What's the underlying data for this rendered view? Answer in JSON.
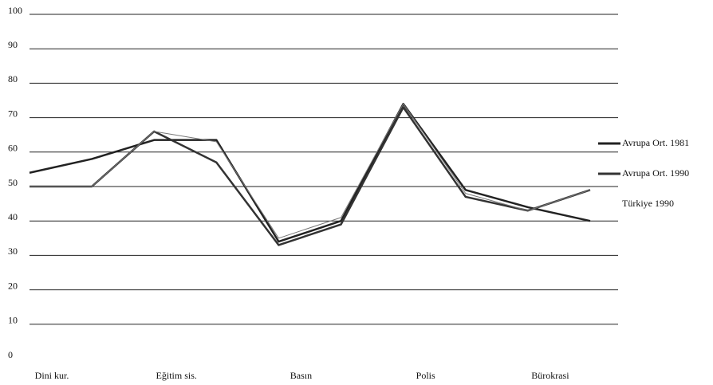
{
  "chart_data": {
    "type": "line",
    "categories": [
      "Dini kur.",
      null,
      "Eğitim sis.",
      null,
      "Basın",
      null,
      "Polis",
      null,
      "Bürokrasi",
      null
    ],
    "series": [
      {
        "name": "Avrupa Ort. 1981",
        "color": "#222222",
        "values": [
          54,
          58,
          63.5,
          63.5,
          34,
          40,
          74,
          49,
          44,
          40
        ]
      },
      {
        "name": "Avrupa Ort. 1990",
        "color": "#333333",
        "values": [
          50,
          50,
          66,
          57,
          33,
          39,
          73,
          47,
          43,
          49
        ]
      },
      {
        "name": "Türkiye 1990",
        "color": "#777777",
        "values": [
          50,
          50,
          66,
          63,
          35,
          41,
          74,
          48,
          43,
          49
        ]
      }
    ],
    "ylim": [
      0,
      100
    ],
    "yticks": [
      0,
      10,
      20,
      30,
      40,
      50,
      60,
      70,
      80,
      90,
      100
    ],
    "grid": true
  }
}
